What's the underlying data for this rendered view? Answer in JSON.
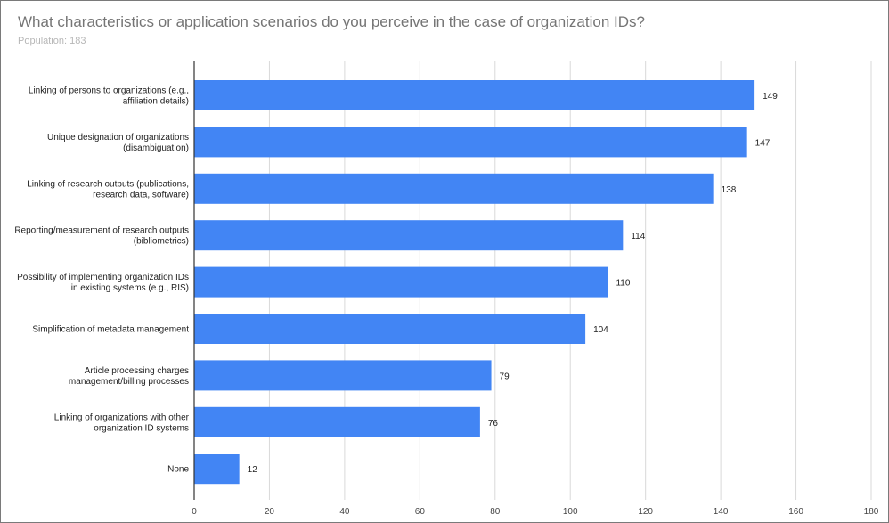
{
  "chart_data": {
    "type": "bar",
    "orientation": "horizontal",
    "title": "What characteristics or application scenarios do you perceive in the case of organization IDs?",
    "subtitle": "Population: 183",
    "categories": [
      [
        "Linking of persons to organizations (e.g.,",
        "affiliation details)"
      ],
      [
        "Unique designation of organizations",
        "(disambiguation)"
      ],
      [
        "Linking of research outputs (publications,",
        "research data, software)"
      ],
      [
        "Reporting/measurement of research outputs",
        "(bibliometrics)"
      ],
      [
        "Possibility of implementing organization IDs",
        "in existing systems (e.g., RIS)"
      ],
      [
        "Simplification of metadata management"
      ],
      [
        "Article processing charges",
        "management/billing processes"
      ],
      [
        "Linking of organizations with other",
        "organization ID systems"
      ],
      [
        "None"
      ]
    ],
    "values": [
      149,
      147,
      138,
      114,
      110,
      104,
      79,
      76,
      12
    ],
    "xlim": [
      0,
      180
    ],
    "xticks": [
      0,
      20,
      40,
      60,
      80,
      100,
      120,
      140,
      160,
      180
    ],
    "grid": true,
    "bar_color": "#4285f4",
    "grid_color": "#d9d9d9",
    "axis_color": "#333333"
  }
}
